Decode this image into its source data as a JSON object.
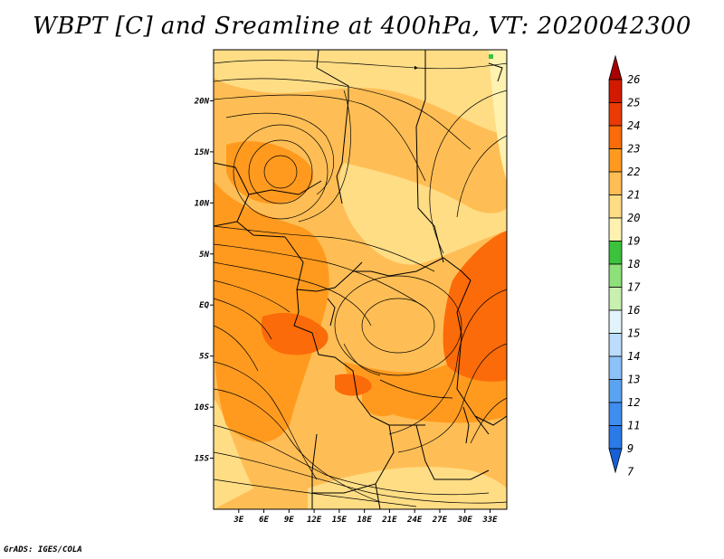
{
  "title": "WBPT [C] and Sreamline at 400hPa, VT: 2020042300",
  "footer": "GrADS: IGES/COLA",
  "map": {
    "lon_range": [
      0,
      35
    ],
    "lat_range": [
      -20,
      25
    ],
    "lon_ticks": [
      "3E",
      "6E",
      "9E",
      "12E",
      "15E",
      "18E",
      "21E",
      "24E",
      "27E",
      "30E",
      "33E"
    ],
    "lon_values": [
      3,
      6,
      9,
      12,
      15,
      18,
      21,
      24,
      27,
      30,
      33
    ],
    "lat_ticks": [
      "20N",
      "15N",
      "10N",
      "5N",
      "EQ",
      "5S",
      "10S",
      "15S"
    ],
    "lat_values": [
      20,
      15,
      10,
      5,
      0,
      -5,
      -10,
      -15
    ]
  },
  "colorbar": {
    "labels": [
      "7",
      "9",
      "11",
      "12",
      "13",
      "14",
      "15",
      "16",
      "17",
      "18",
      "19",
      "20",
      "21",
      "22",
      "23",
      "24",
      "25",
      "26"
    ],
    "colors": [
      "#1560d6",
      "#2a7ae8",
      "#3e8ef0",
      "#5aa3f3",
      "#8cc2f8",
      "#bcdcfb",
      "#e1f3fb",
      "#c8f0b0",
      "#8ee07a",
      "#3cc23c",
      "#fff2b0",
      "#ffdd85",
      "#ffbe55",
      "#ff9a1e",
      "#fb6b0a",
      "#ea3a05",
      "#d11a00",
      "#a80000"
    ],
    "top_arrow_color": "#a80000",
    "bottom_arrow_color": "#1560d6"
  }
}
